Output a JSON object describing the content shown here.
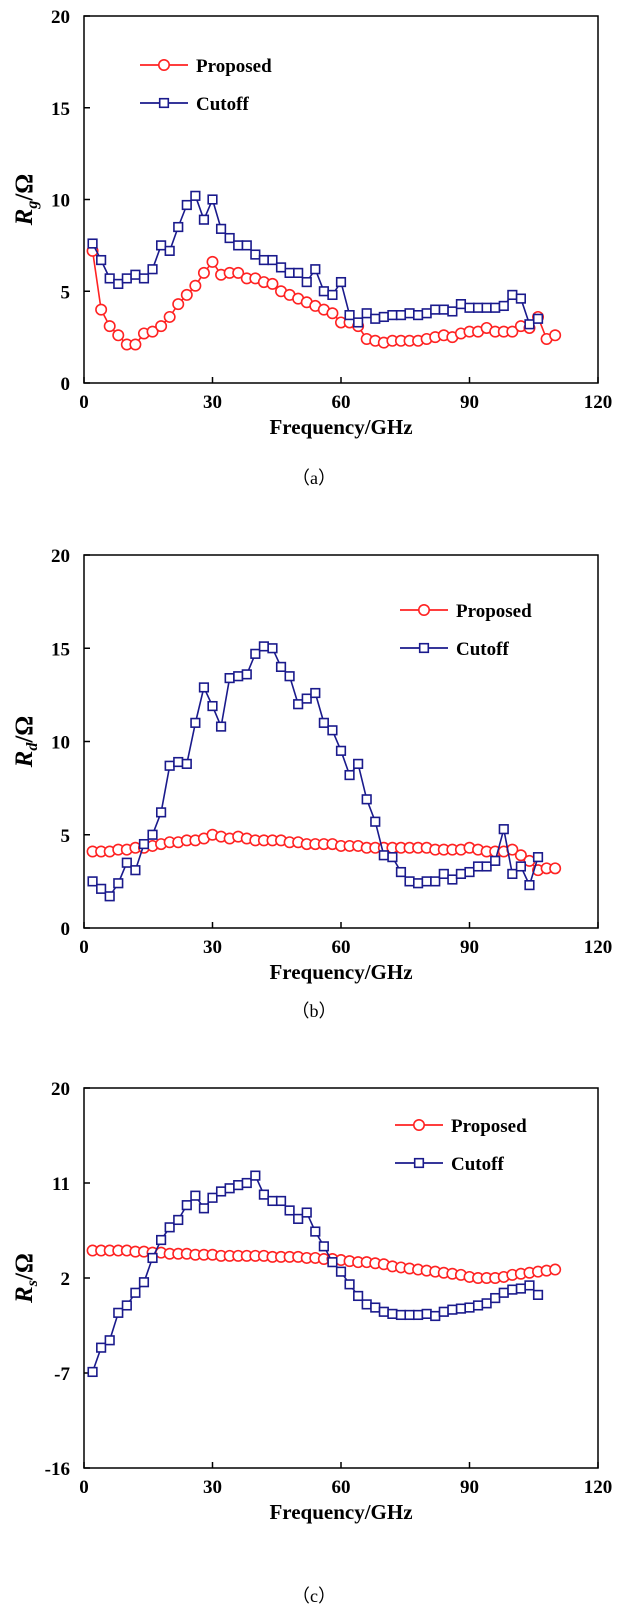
{
  "colors": {
    "proposed": "#ff2222",
    "cutoff": "#1a1a8c",
    "axis": "#000000"
  },
  "chart_data": [
    {
      "type": "line",
      "caption": "（a）",
      "ylabel_main": "R",
      "ylabel_sub": "g",
      "ylabel_unit": "/Ω",
      "xlabel": "Frequency/GHz",
      "xlim": [
        0,
        120
      ],
      "ylim": [
        0,
        20
      ],
      "xticks": [
        0,
        30,
        60,
        90,
        120
      ],
      "yticks": [
        0,
        5,
        10,
        15,
        20
      ],
      "legend_position": "top-left",
      "series": [
        {
          "name": "Proposed",
          "marker": "circle",
          "x": [
            2,
            4,
            6,
            8,
            10,
            12,
            14,
            16,
            18,
            20,
            22,
            24,
            26,
            28,
            30,
            32,
            34,
            36,
            38,
            40,
            42,
            44,
            46,
            48,
            50,
            52,
            54,
            56,
            58,
            60,
            62,
            64,
            66,
            68,
            70,
            72,
            74,
            76,
            78,
            80,
            82,
            84,
            86,
            88,
            90,
            92,
            94,
            96,
            98,
            100,
            102,
            104,
            106,
            108,
            110
          ],
          "y": [
            7.2,
            4.0,
            3.1,
            2.6,
            2.1,
            2.1,
            2.7,
            2.8,
            3.1,
            3.6,
            4.3,
            4.8,
            5.3,
            6.0,
            6.6,
            5.9,
            6.0,
            6.0,
            5.7,
            5.7,
            5.5,
            5.4,
            5.0,
            4.8,
            4.6,
            4.4,
            4.2,
            4.0,
            3.8,
            3.3,
            3.3,
            3.1,
            2.4,
            2.3,
            2.2,
            2.3,
            2.3,
            2.3,
            2.3,
            2.4,
            2.5,
            2.6,
            2.5,
            2.7,
            2.8,
            2.8,
            3.0,
            2.8,
            2.8,
            2.8,
            3.1,
            3.0,
            3.6,
            2.4,
            2.6
          ]
        },
        {
          "name": "Cutoff",
          "marker": "square",
          "x": [
            2,
            4,
            6,
            8,
            10,
            12,
            14,
            16,
            18,
            20,
            22,
            24,
            26,
            28,
            30,
            32,
            34,
            36,
            38,
            40,
            42,
            44,
            46,
            48,
            50,
            52,
            54,
            56,
            58,
            60,
            62,
            64,
            66,
            68,
            70,
            72,
            74,
            76,
            78,
            80,
            82,
            84,
            86,
            88,
            90,
            92,
            94,
            96,
            98,
            100,
            102,
            104,
            106
          ],
          "y": [
            7.6,
            6.7,
            5.7,
            5.4,
            5.7,
            5.9,
            5.7,
            6.2,
            7.5,
            7.2,
            8.5,
            9.7,
            10.2,
            8.9,
            10.0,
            8.4,
            7.9,
            7.5,
            7.5,
            7.0,
            6.7,
            6.7,
            6.3,
            6.0,
            6.0,
            5.5,
            6.2,
            5.0,
            4.8,
            5.5,
            3.7,
            3.3,
            3.8,
            3.5,
            3.6,
            3.7,
            3.7,
            3.8,
            3.7,
            3.8,
            4.0,
            4.0,
            3.9,
            4.3,
            4.1,
            4.1,
            4.1,
            4.1,
            4.2,
            4.8,
            4.6,
            3.2,
            3.5
          ]
        }
      ]
    },
    {
      "type": "line",
      "caption": "（b）",
      "ylabel_main": "R",
      "ylabel_sub": "d",
      "ylabel_unit": "/Ω",
      "xlabel": "Frequency/GHz",
      "xlim": [
        0,
        120
      ],
      "ylim": [
        0,
        20
      ],
      "xticks": [
        0,
        30,
        60,
        90,
        120
      ],
      "yticks": [
        0,
        5,
        10,
        15,
        20
      ],
      "legend_position": "top-right",
      "series": [
        {
          "name": "Proposed",
          "marker": "circle",
          "x": [
            2,
            4,
            6,
            8,
            10,
            12,
            14,
            16,
            18,
            20,
            22,
            24,
            26,
            28,
            30,
            32,
            34,
            36,
            38,
            40,
            42,
            44,
            46,
            48,
            50,
            52,
            54,
            56,
            58,
            60,
            62,
            64,
            66,
            68,
            70,
            72,
            74,
            76,
            78,
            80,
            82,
            84,
            86,
            88,
            90,
            92,
            94,
            96,
            98,
            100,
            102,
            104,
            106,
            108,
            110
          ],
          "y": [
            4.1,
            4.1,
            4.1,
            4.2,
            4.2,
            4.3,
            4.3,
            4.4,
            4.5,
            4.6,
            4.6,
            4.7,
            4.7,
            4.8,
            5.0,
            4.9,
            4.8,
            4.9,
            4.8,
            4.7,
            4.7,
            4.7,
            4.7,
            4.6,
            4.6,
            4.5,
            4.5,
            4.5,
            4.5,
            4.4,
            4.4,
            4.4,
            4.3,
            4.3,
            4.3,
            4.3,
            4.3,
            4.3,
            4.3,
            4.3,
            4.2,
            4.2,
            4.2,
            4.2,
            4.3,
            4.2,
            4.1,
            4.1,
            4.1,
            4.2,
            3.9,
            3.6,
            3.1,
            3.2,
            3.2
          ]
        },
        {
          "name": "Cutoff",
          "marker": "square",
          "x": [
            2,
            4,
            6,
            8,
            10,
            12,
            14,
            16,
            18,
            20,
            22,
            24,
            26,
            28,
            30,
            32,
            34,
            36,
            38,
            40,
            42,
            44,
            46,
            48,
            50,
            52,
            54,
            56,
            58,
            60,
            62,
            64,
            66,
            68,
            70,
            72,
            74,
            76,
            78,
            80,
            82,
            84,
            86,
            88,
            90,
            92,
            94,
            96,
            98,
            100,
            102,
            104,
            106
          ],
          "y": [
            2.5,
            2.1,
            1.7,
            2.4,
            3.5,
            3.1,
            4.5,
            5.0,
            6.2,
            8.7,
            8.9,
            8.8,
            11.0,
            12.9,
            11.9,
            10.8,
            13.4,
            13.5,
            13.6,
            14.7,
            15.1,
            15.0,
            14.0,
            13.5,
            12.0,
            12.3,
            12.6,
            11.0,
            10.6,
            9.5,
            8.2,
            8.8,
            6.9,
            5.7,
            3.9,
            3.8,
            3.0,
            2.5,
            2.4,
            2.5,
            2.5,
            2.9,
            2.6,
            2.9,
            3.0,
            3.3,
            3.3,
            3.6,
            5.3,
            2.9,
            3.3,
            2.3,
            3.8
          ]
        }
      ]
    },
    {
      "type": "line",
      "caption": "（c）",
      "ylabel_main": "R",
      "ylabel_sub": "s",
      "ylabel_unit": "/Ω",
      "xlabel": "Frequency/GHz",
      "xlim": [
        0,
        120
      ],
      "ylim": [
        -16,
        20
      ],
      "xticks": [
        0,
        30,
        60,
        90,
        120
      ],
      "yticks": [
        -16,
        -7,
        2,
        11,
        20
      ],
      "legend_position": "top-right",
      "series": [
        {
          "name": "Proposed",
          "marker": "circle",
          "x": [
            2,
            4,
            6,
            8,
            10,
            12,
            14,
            16,
            18,
            20,
            22,
            24,
            26,
            28,
            30,
            32,
            34,
            36,
            38,
            40,
            42,
            44,
            46,
            48,
            50,
            52,
            54,
            56,
            58,
            60,
            62,
            64,
            66,
            68,
            70,
            72,
            74,
            76,
            78,
            80,
            82,
            84,
            86,
            88,
            90,
            92,
            94,
            96,
            98,
            100,
            102,
            104,
            106,
            108,
            110
          ],
          "y": [
            4.6,
            4.6,
            4.6,
            4.6,
            4.6,
            4.5,
            4.5,
            4.4,
            4.4,
            4.3,
            4.3,
            4.3,
            4.2,
            4.2,
            4.2,
            4.1,
            4.1,
            4.1,
            4.1,
            4.1,
            4.1,
            4.0,
            4.0,
            4.0,
            4.0,
            3.9,
            3.9,
            3.8,
            3.8,
            3.7,
            3.6,
            3.5,
            3.5,
            3.4,
            3.3,
            3.1,
            3.0,
            2.9,
            2.8,
            2.7,
            2.6,
            2.5,
            2.4,
            2.3,
            2.1,
            2.0,
            2.0,
            2.0,
            2.1,
            2.3,
            2.4,
            2.5,
            2.6,
            2.7,
            2.8
          ]
        },
        {
          "name": "Cutoff",
          "marker": "square",
          "x": [
            2,
            4,
            6,
            8,
            10,
            12,
            14,
            16,
            18,
            20,
            22,
            24,
            26,
            28,
            30,
            32,
            34,
            36,
            38,
            40,
            42,
            44,
            46,
            48,
            50,
            52,
            54,
            56,
            58,
            60,
            62,
            64,
            66,
            68,
            70,
            72,
            74,
            76,
            78,
            80,
            82,
            84,
            86,
            88,
            90,
            92,
            94,
            96,
            98,
            100,
            102,
            104,
            106
          ],
          "y": [
            -6.9,
            -4.6,
            -3.9,
            -1.3,
            -0.6,
            0.6,
            1.6,
            3.9,
            5.6,
            6.8,
            7.5,
            8.9,
            9.8,
            8.6,
            9.6,
            10.2,
            10.5,
            10.8,
            11.0,
            11.7,
            9.9,
            9.3,
            9.3,
            8.4,
            7.6,
            8.2,
            6.4,
            5.0,
            3.5,
            2.6,
            1.4,
            0.3,
            -0.5,
            -0.8,
            -1.2,
            -1.4,
            -1.5,
            -1.5,
            -1.5,
            -1.4,
            -1.6,
            -1.2,
            -1.0,
            -0.9,
            -0.8,
            -0.6,
            -0.4,
            0.1,
            0.6,
            0.9,
            1.0,
            1.3,
            0.4
          ]
        }
      ]
    }
  ]
}
